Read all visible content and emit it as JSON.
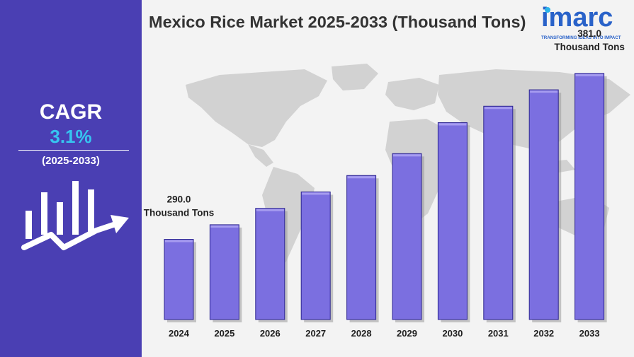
{
  "sidebar": {
    "cagr_label": "CAGR",
    "cagr_value": "3.1%",
    "cagr_period": "(2025-2033)",
    "icon": "bar-growth-arrow-icon"
  },
  "header": {
    "title": "Mexico Rice Market 2025-2033 (Thousand Tons)"
  },
  "logo": {
    "name": "imarc",
    "tagline": "TRANSFORMING IDEAS INTO IMPACT"
  },
  "colors": {
    "sidebar": "#4a3fb3",
    "accent": "#36c4f0",
    "bar_fill": "#7b6fe0",
    "bar_stroke": "#2e2690",
    "logo": "#2962c9"
  },
  "chart_data": {
    "type": "bar",
    "title": "Mexico Rice Market 2025-2033 (Thousand Tons)",
    "categories": [
      "2024",
      "2025",
      "2026",
      "2027",
      "2028",
      "2029",
      "2030",
      "2031",
      "2032",
      "2033"
    ],
    "values": [
      290.0,
      298.0,
      307.0,
      316.0,
      325.0,
      337.0,
      354.0,
      363.0,
      372.0,
      381.0
    ],
    "ylim": [
      246,
      398
    ],
    "grid": false,
    "annotations": [
      {
        "category": "2024",
        "line1": "290.0",
        "line2": "Thousand Tons"
      },
      {
        "category": "2033",
        "line1": "381.0",
        "line2": "Thousand Tons"
      }
    ]
  }
}
